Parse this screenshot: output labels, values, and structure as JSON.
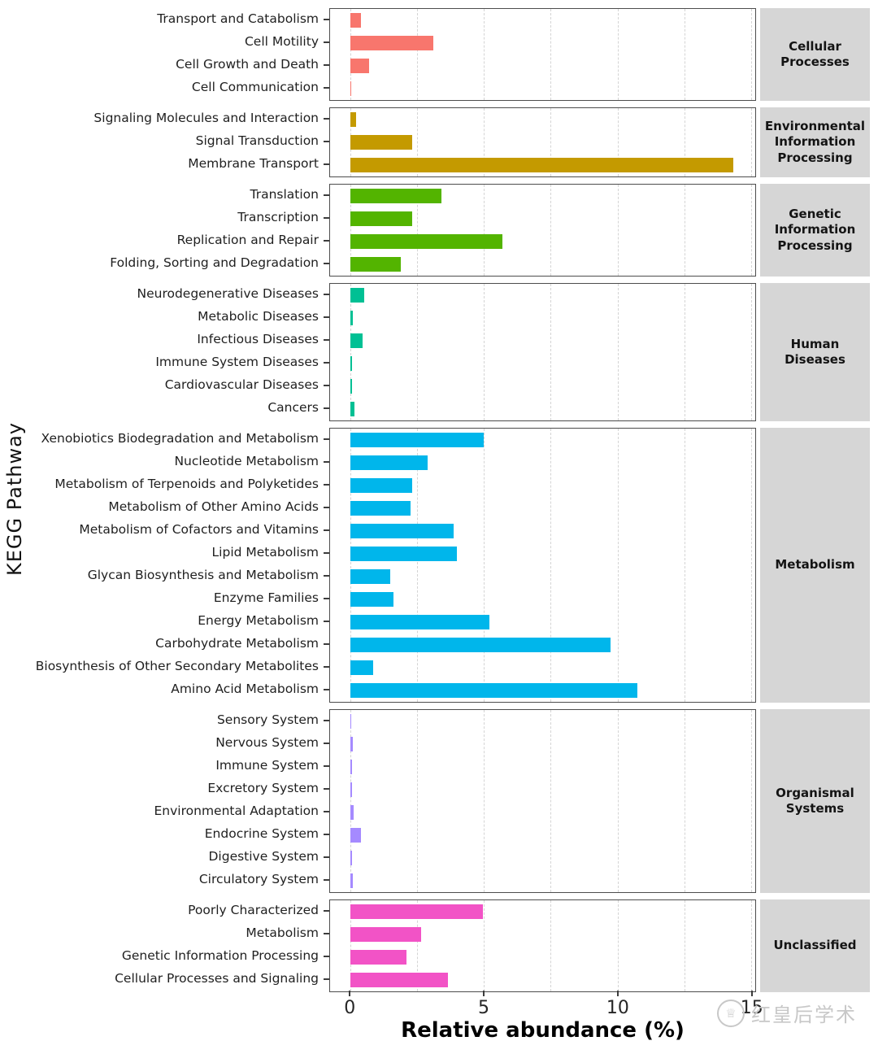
{
  "chart_data": {
    "type": "bar",
    "orientation": "horizontal",
    "xlabel": "Relative abundance (%)",
    "ylabel": "KEGG Pathway",
    "xlim": [
      0,
      15.8
    ],
    "x_ticks": [
      0,
      5,
      10,
      15
    ],
    "x_gridlines": [
      0,
      2.5,
      5,
      7.5,
      10,
      12.5,
      15
    ],
    "grid": "dashed-vertical",
    "legend": "none",
    "facets": [
      {
        "label": "Cellular Processes",
        "color": "#F8766D",
        "categories": [
          "Transport and Catabolism",
          "Cell Motility",
          "Cell Growth and Death",
          "Cell Communication"
        ],
        "values": [
          0.4,
          3.1,
          0.7,
          0.02
        ]
      },
      {
        "label": "Environmental Information Processing",
        "color": "#C49A00",
        "categories": [
          "Signaling Molecules and Interaction",
          "Signal Transduction",
          "Membrane Transport"
        ],
        "values": [
          0.2,
          2.3,
          14.35
        ]
      },
      {
        "label": "Genetic Information Processing",
        "color": "#53B400",
        "categories": [
          "Translation",
          "Transcription",
          "Replication and Repair",
          "Folding, Sorting and Degradation"
        ],
        "values": [
          3.4,
          2.3,
          5.7,
          1.9
        ]
      },
      {
        "label": "Human Diseases",
        "color": "#00C094",
        "categories": [
          "Neurodegenerative Diseases",
          "Metabolic Diseases",
          "Infectious Diseases",
          "Immune System Diseases",
          "Cardiovascular Diseases",
          "Cancers"
        ],
        "values": [
          0.5,
          0.1,
          0.45,
          0.06,
          0.06,
          0.15
        ]
      },
      {
        "label": "Metabolism",
        "color": "#00B6EB",
        "categories": [
          "Xenobiotics Biodegradation and Metabolism",
          "Nucleotide Metabolism",
          "Metabolism of Terpenoids and Polyketides",
          "Metabolism of Other Amino Acids",
          "Metabolism of Cofactors and Vitamins",
          "Lipid Metabolism",
          "Glycan Biosynthesis and Metabolism",
          "Enzyme Families",
          "Energy Metabolism",
          "Carbohydrate Metabolism",
          "Biosynthesis of Other Secondary Metabolites",
          "Amino Acid Metabolism"
        ],
        "values": [
          5.0,
          2.9,
          2.3,
          2.25,
          3.85,
          4.0,
          1.5,
          1.6,
          5.2,
          9.75,
          0.85,
          10.75
        ]
      },
      {
        "label": "Organismal Systems",
        "color": "#A58AFF",
        "categories": [
          "Sensory System",
          "Nervous System",
          "Immune System",
          "Excretory System",
          "Environmental Adaptation",
          "Endocrine System",
          "Digestive System",
          "Circulatory System"
        ],
        "values": [
          0.02,
          0.1,
          0.05,
          0.06,
          0.12,
          0.4,
          0.05,
          0.1
        ]
      },
      {
        "label": "Unclassified",
        "color": "#F253C6",
        "categories": [
          "Poorly Characterized",
          "Metabolism",
          "Genetic Information Processing",
          "Cellular Processes and Signaling"
        ],
        "values": [
          4.95,
          2.65,
          2.1,
          3.65
        ]
      }
    ]
  },
  "watermark": {
    "icon": "crown-icon",
    "text": "红皇后学术"
  }
}
